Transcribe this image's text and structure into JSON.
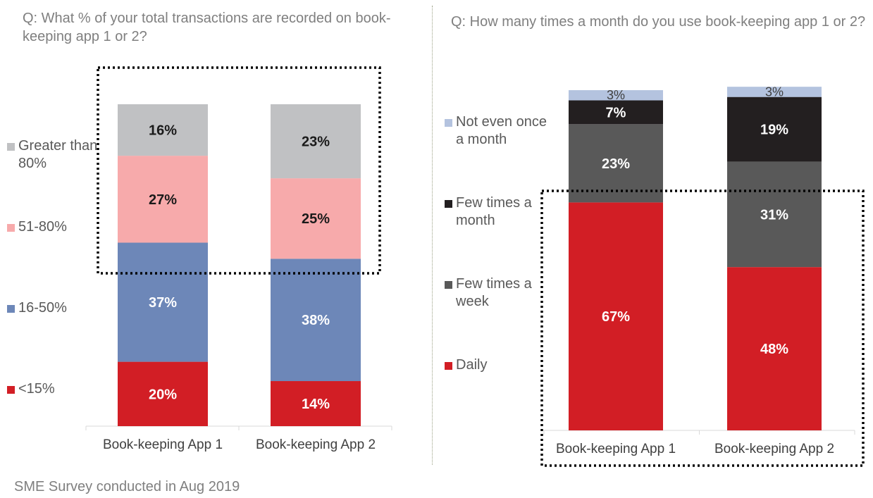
{
  "left_question": "Q: What % of your total transactions are recorded on book-keeping app 1 or 2?",
  "right_question": "Q: How many times a month do you use book-keeping app 1 or 2?",
  "footer_note": "SME Survey conducted in Aug 2019",
  "chart_data": [
    {
      "type": "bar",
      "stacked": true,
      "title": "Q: What % of your total transactions are recorded on book-keeping app 1 or 2?",
      "categories": [
        "Book-keeping App 1",
        "Book-keeping App 2"
      ],
      "ylim": [
        0,
        100
      ],
      "legend_position": "left",
      "series": [
        {
          "name": "<15%",
          "values": [
            20,
            14
          ],
          "color": "#d21e25",
          "label_color": "#ffffff"
        },
        {
          "name": "16-50%",
          "values": [
            37,
            38
          ],
          "color": "#6d87b8",
          "label_color": "#ffffff"
        },
        {
          "name": "51-80%",
          "values": [
            27,
            25
          ],
          "color": "#f7aaab",
          "label_color": "#1a1a1a"
        },
        {
          "name": "Greater than 80%",
          "values": [
            16,
            23
          ],
          "color": "#c0c1c3",
          "label_color": "#1a1a1a"
        }
      ],
      "value_labels": [
        [
          "20%",
          "37%",
          "27%",
          "16%"
        ],
        [
          "14%",
          "38%",
          "25%",
          "23%"
        ]
      ]
    },
    {
      "type": "bar",
      "stacked": true,
      "title": "Q: How many times a month do you use book-keeping app 1 or 2?",
      "categories": [
        "Book-keeping App 1",
        "Book-keeping App 2"
      ],
      "ylim": [
        0,
        100
      ],
      "legend_position": "left",
      "series": [
        {
          "name": "Daily",
          "values": [
            67,
            48
          ],
          "color": "#d21e25",
          "label_color": "#ffffff"
        },
        {
          "name": "Few times a week",
          "values": [
            23,
            31
          ],
          "color": "#595959",
          "label_color": "#ffffff"
        },
        {
          "name": "Few times a month",
          "values": [
            7,
            19
          ],
          "color": "#231f20",
          "label_color": "#ffffff"
        },
        {
          "name": "Not even once a month",
          "values": [
            3,
            3
          ],
          "color": "#b4c3df",
          "label_color": "#1a1a1a"
        }
      ],
      "value_labels": [
        [
          "67%",
          "23%",
          "7%",
          "3%"
        ],
        [
          "48%",
          "31%",
          "19%",
          "3%"
        ]
      ]
    }
  ]
}
